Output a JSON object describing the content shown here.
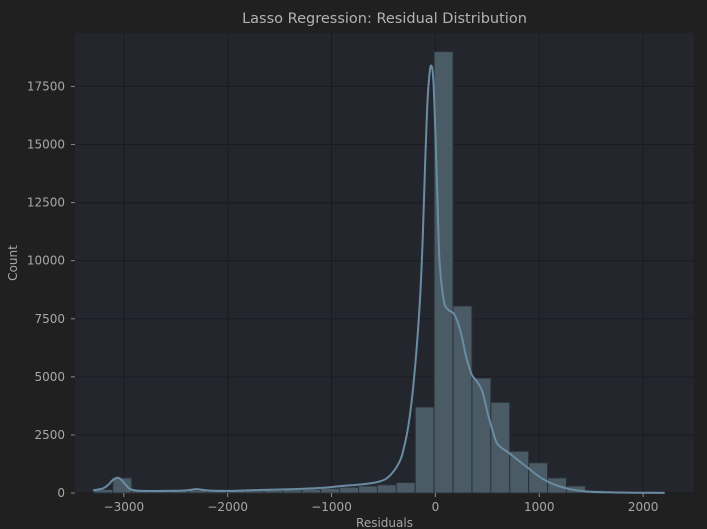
{
  "chart_data": {
    "type": "bar",
    "title": "Lasso Regression: Residual Distribution",
    "xlabel": "Residuals",
    "ylabel": "Count",
    "xlim": [
      -3470,
      2490
    ],
    "ylim": [
      0,
      19800
    ],
    "xticks": [
      -3000,
      -2000,
      -1000,
      0,
      1000,
      2000
    ],
    "xtick_labels": [
      "−3000",
      "−2000",
      "−1000",
      "0",
      "1000",
      "2000"
    ],
    "yticks": [
      0,
      2500,
      5000,
      7500,
      10000,
      12500,
      15000,
      17500
    ],
    "ytick_labels": [
      "0",
      "2500",
      "5000",
      "7500",
      "10000",
      "12500",
      "15000",
      "17500"
    ],
    "grid": true,
    "bin_width": 182,
    "bins": [
      {
        "x0": -3288,
        "count": 150
      },
      {
        "x0": -3106,
        "count": 650
      },
      {
        "x0": -2924,
        "count": 100
      },
      {
        "x0": -2742,
        "count": 80
      },
      {
        "x0": -2560,
        "count": 80
      },
      {
        "x0": -2378,
        "count": 120
      },
      {
        "x0": -2196,
        "count": 80
      },
      {
        "x0": -2014,
        "count": 90
      },
      {
        "x0": -1832,
        "count": 100
      },
      {
        "x0": -1650,
        "count": 120
      },
      {
        "x0": -1468,
        "count": 140
      },
      {
        "x0": -1286,
        "count": 170
      },
      {
        "x0": -1104,
        "count": 200
      },
      {
        "x0": -922,
        "count": 250
      },
      {
        "x0": -740,
        "count": 300
      },
      {
        "x0": -558,
        "count": 350
      },
      {
        "x0": -376,
        "count": 450
      },
      {
        "x0": -194,
        "count": 3700
      },
      {
        "x0": -12,
        "count": 19000
      },
      {
        "x0": 170,
        "count": 8050
      },
      {
        "x0": 352,
        "count": 4950
      },
      {
        "x0": 534,
        "count": 3900
      },
      {
        "x0": 716,
        "count": 1800
      },
      {
        "x0": 898,
        "count": 1300
      },
      {
        "x0": 1080,
        "count": 650
      },
      {
        "x0": 1262,
        "count": 300
      },
      {
        "x0": 1444,
        "count": 100
      },
      {
        "x0": 1626,
        "count": 60
      },
      {
        "x0": 1808,
        "count": 40
      },
      {
        "x0": 1990,
        "count": 30
      }
    ],
    "kde": {
      "x": [
        -3288,
        -3200,
        -3150,
        -3100,
        -3050,
        -3000,
        -2950,
        -2900,
        -2800,
        -2600,
        -2400,
        -2300,
        -2200,
        -2000,
        -1700,
        -1400,
        -1100,
        -900,
        -700,
        -550,
        -450,
        -350,
        -300,
        -250,
        -200,
        -150,
        -120,
        -100,
        -80,
        -60,
        -40,
        -20,
        0,
        20,
        40,
        80,
        120,
        180,
        240,
        300,
        350,
        400,
        450,
        500,
        550,
        600,
        700,
        800,
        900,
        1000,
        1100,
        1200,
        1300,
        1400,
        1500,
        1700,
        1900,
        2100,
        2200
      ],
      "y": [
        120,
        200,
        350,
        580,
        650,
        450,
        200,
        120,
        90,
        90,
        110,
        170,
        110,
        90,
        130,
        160,
        220,
        300,
        380,
        480,
        700,
        1300,
        2000,
        3200,
        5200,
        8200,
        11200,
        14000,
        16500,
        17900,
        18400,
        17800,
        15500,
        12600,
        10000,
        8300,
        7900,
        7700,
        7000,
        5800,
        5100,
        4800,
        4400,
        3500,
        2700,
        2100,
        1750,
        1400,
        1050,
        700,
        450,
        280,
        160,
        90,
        50,
        25,
        15,
        8,
        5
      ]
    }
  }
}
